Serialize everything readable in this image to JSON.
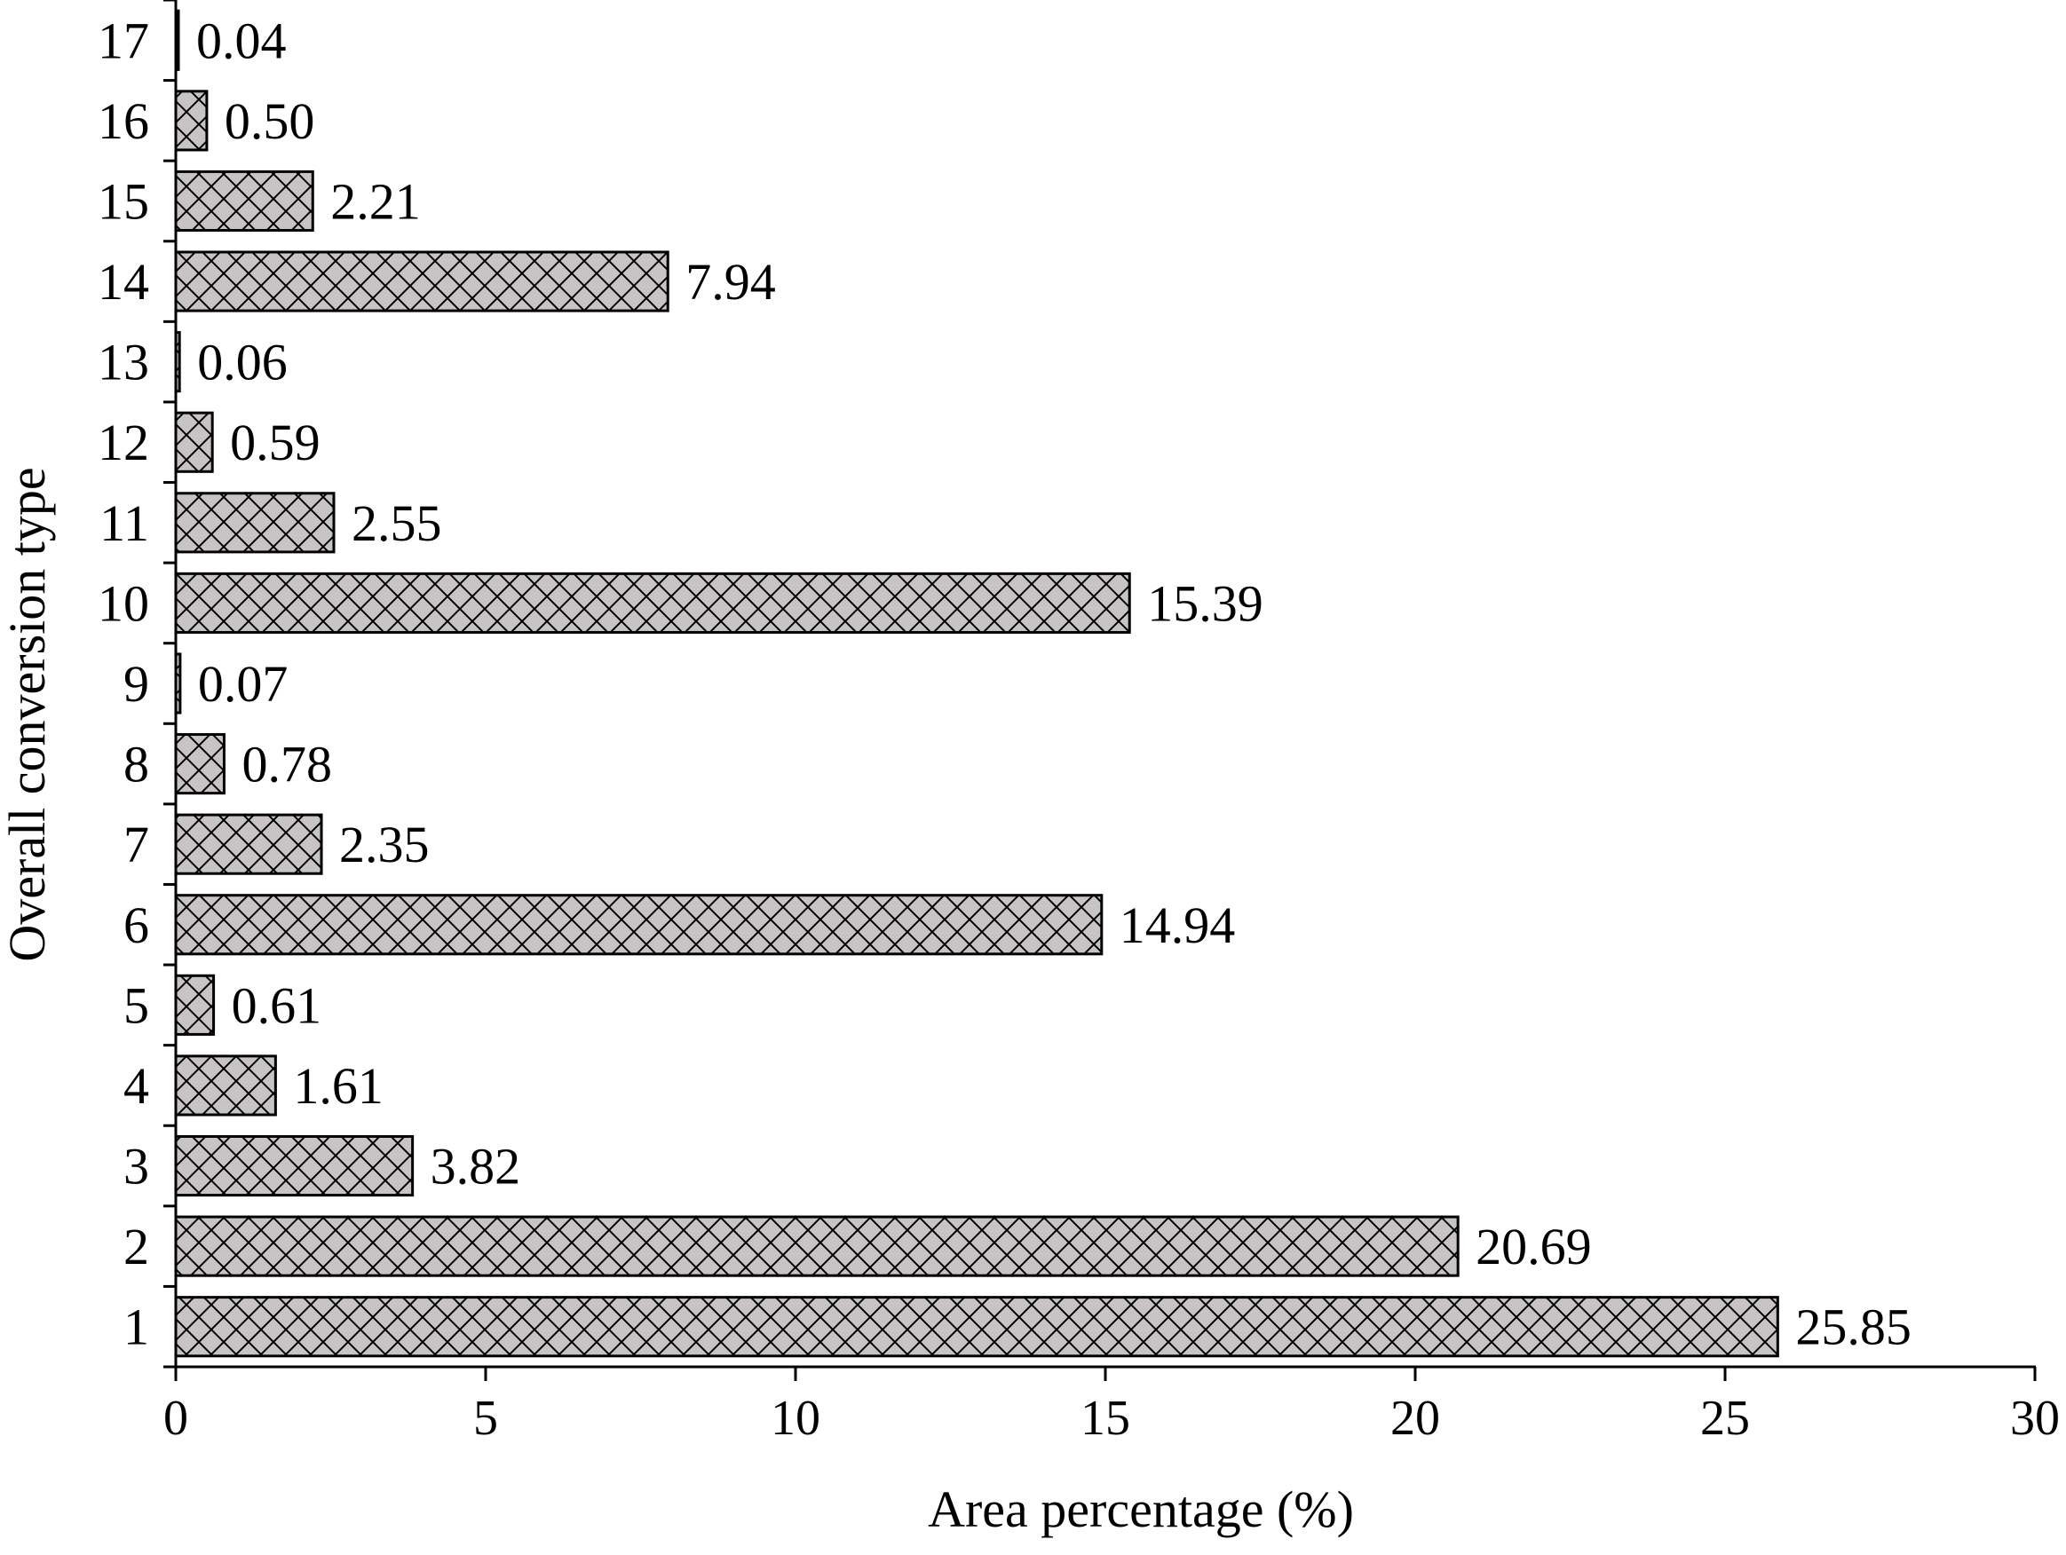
{
  "chart_data": {
    "type": "bar",
    "orientation": "horizontal",
    "title": "",
    "xlabel": "Area percentage (%)",
    "ylabel": "Overall conversion type",
    "xlim": [
      0,
      30
    ],
    "xticks": [
      "0",
      "5",
      "10",
      "15",
      "20",
      "25",
      "30"
    ],
    "categories": [
      "1",
      "2",
      "3",
      "4",
      "5",
      "6",
      "7",
      "8",
      "9",
      "10",
      "11",
      "12",
      "13",
      "14",
      "15",
      "16",
      "17"
    ],
    "values": [
      25.85,
      20.69,
      3.82,
      1.61,
      0.61,
      14.94,
      2.35,
      0.78,
      0.07,
      15.39,
      2.55,
      0.59,
      0.06,
      7.94,
      2.21,
      0.5,
      0.04
    ],
    "value_labels": [
      "25.85",
      "20.69",
      "3.82",
      "1.61",
      "0.61",
      "14.94",
      "2.35",
      "0.78",
      "0.07",
      "15.39",
      "2.55",
      "0.59",
      "0.06",
      "7.94",
      "2.21",
      "0.50",
      "0.04"
    ],
    "grid": false,
    "legend": "none",
    "bar_fill": "#c8c4c6",
    "bar_pattern": "crosshatch",
    "bar_stroke": "#000000"
  }
}
